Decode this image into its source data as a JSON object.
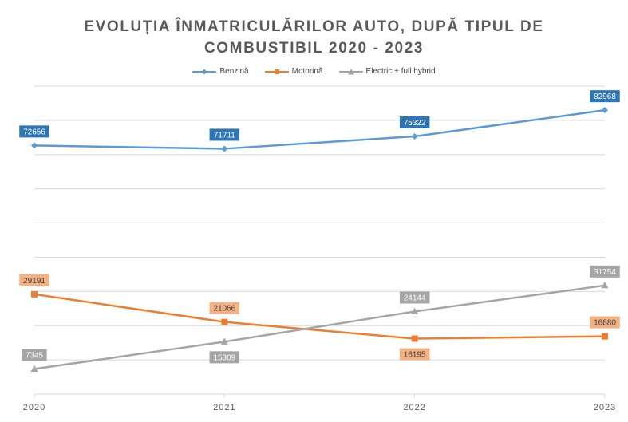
{
  "chart_data": {
    "type": "line",
    "title_line1": "EVOLUȚIA ÎNMATRICULĂRILOR AUTO, DUPĂ TIPUL DE",
    "title_line2": "COMBUSTIBIL 2020 - 2023",
    "categories": [
      "2020",
      "2021",
      "2022",
      "2023"
    ],
    "ylim": [
      0,
      90000
    ],
    "grid": true,
    "legend_position": "top",
    "series": [
      {
        "name": "Benzină",
        "values": [
          72656,
          71711,
          75322,
          82968
        ],
        "color": "#5B9BD5",
        "label_bg": "#2E75B6",
        "label_color": "#ffffff",
        "marker": "diamond",
        "label_pos": "above"
      },
      {
        "name": "Motorină",
        "values": [
          29191,
          21066,
          16195,
          16880
        ],
        "color": "#ED7D31",
        "label_bg": "#F4B183",
        "label_color": "#404040",
        "marker": "square",
        "label_pos": [
          "above",
          "above",
          "below",
          "above"
        ]
      },
      {
        "name": "Electric + full hybrid",
        "values": [
          7345,
          15309,
          24144,
          31754
        ],
        "color": "#A5A5A5",
        "label_bg": "#A5A5A5",
        "label_color": "#ffffff",
        "marker": "triangle",
        "label_pos": [
          "above",
          "below",
          "above",
          "above"
        ]
      }
    ]
  }
}
